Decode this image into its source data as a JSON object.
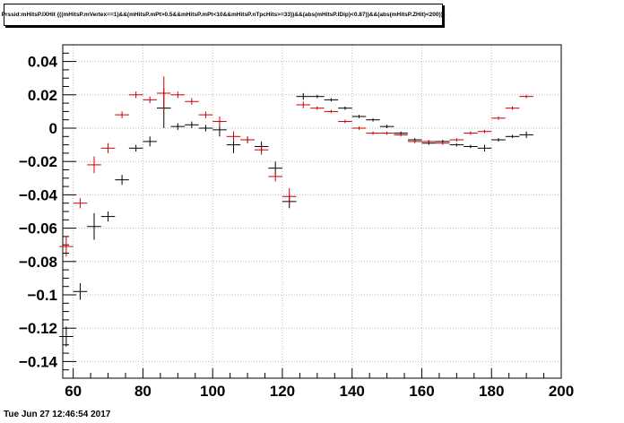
{
  "footer_text": "Tue Jun 27 12:46:54 2017",
  "chart_data": {
    "type": "scatter",
    "title": "Prssid:mHitsP.IXHit {((mHitsP.mVertex==1)&&(mHitsP.mPt>0.5&&mHitsP.mPt<10&&mHitsP.nTpcHits>=33))&&(abs(mHitsP.lDip)<0.87))&&(abs(mHitsP.ZHit)<200))}",
    "xlim": [
      57,
      200
    ],
    "ylim": [
      -0.15,
      0.05
    ],
    "grid": true,
    "x_ticks": [
      60,
      80,
      100,
      120,
      140,
      160,
      180,
      200
    ],
    "y_ticks": [
      0.04,
      0.02,
      0,
      -0.02,
      -0.04,
      -0.06,
      -0.08,
      -0.1,
      -0.12,
      -0.14
    ],
    "x_tick_labels": [
      "60",
      "80",
      "100",
      "120",
      "140",
      "160",
      "180",
      "200"
    ],
    "y_tick_labels": [
      "0.04",
      "0.02",
      "0",
      "−0.02",
      "−0.04",
      "−0.06",
      "−0.08",
      "−0.1",
      "−0.12",
      "−0.14"
    ],
    "series": [
      {
        "color": "#000000",
        "x": [
          58,
          62,
          66,
          70,
          74,
          78,
          82,
          86,
          90,
          94,
          98,
          102,
          106,
          110,
          114,
          118,
          122,
          126,
          130,
          134,
          138,
          142,
          146,
          150,
          154,
          158,
          162,
          166,
          170,
          174,
          178,
          182,
          186,
          190
        ],
        "y": [
          -0.125,
          -0.098,
          -0.059,
          -0.053,
          -0.031,
          -0.012,
          -0.008,
          0.012,
          0.001,
          0.002,
          0.0,
          -0.001,
          -0.01,
          -0.007,
          -0.011,
          -0.024,
          -0.044,
          0.019,
          0.019,
          0.017,
          0.012,
          0.007,
          0.005,
          0.001,
          -0.003,
          -0.007,
          -0.009,
          -0.008,
          -0.01,
          -0.011,
          -0.012,
          -0.007,
          -0.005,
          -0.004
        ],
        "yerr": [
          0.006,
          0.005,
          0.008,
          0.003,
          0.003,
          0.002,
          0.003,
          0.012,
          0.002,
          0.002,
          0.002,
          0.004,
          0.005,
          0.002,
          0.003,
          0.004,
          0.004,
          0.002,
          0.001,
          0.001,
          0.001,
          0.001,
          0.001,
          0.001,
          0.001,
          0.001,
          0.001,
          0.001,
          0.001,
          0.001,
          0.002,
          0.001,
          0.001,
          0.002
        ]
      },
      {
        "color": "#cc0000",
        "x": [
          58,
          62,
          66,
          70,
          74,
          78,
          82,
          86,
          90,
          94,
          98,
          102,
          106,
          110,
          114,
          118,
          122,
          126,
          130,
          134,
          138,
          142,
          146,
          150,
          154,
          158,
          162,
          166,
          170,
          174,
          178,
          182,
          186,
          190
        ],
        "y": [
          -0.071,
          -0.045,
          -0.022,
          -0.012,
          0.008,
          0.02,
          0.017,
          0.021,
          0.02,
          0.016,
          0.008,
          0.004,
          -0.005,
          -0.007,
          -0.013,
          -0.029,
          -0.041,
          0.014,
          0.012,
          0.01,
          0.004,
          0.0,
          -0.003,
          -0.003,
          -0.004,
          -0.008,
          -0.008,
          -0.009,
          -0.007,
          -0.003,
          -0.002,
          0.006,
          0.012,
          0.019
        ],
        "yerr": [
          0.006,
          0.003,
          0.005,
          0.003,
          0.002,
          0.002,
          0.002,
          0.01,
          0.002,
          0.002,
          0.002,
          0.003,
          0.003,
          0.002,
          0.003,
          0.003,
          0.005,
          0.002,
          0.001,
          0.001,
          0.001,
          0.001,
          0.001,
          0.001,
          0.001,
          0.001,
          0.001,
          0.001,
          0.001,
          0.001,
          0.001,
          0.001,
          0.001,
          0.001
        ]
      }
    ]
  }
}
